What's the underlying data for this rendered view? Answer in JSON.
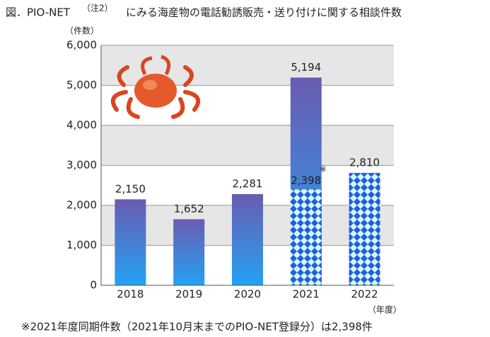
{
  "chart_data": {
    "type": "bar",
    "title": "図．PIO-NET",
    "title_note": "（注2）",
    "title_rest": "にみる海産物の電話勧誘販売・送り付けに関する相談件数",
    "y_label": "（件数）",
    "x_label": "（年度）",
    "categories": [
      "2018",
      "2019",
      "2020",
      "2021",
      "2022"
    ],
    "values": [
      2150,
      1652,
      2281,
      5194,
      2810
    ],
    "value_labels": [
      "2,150",
      "1,652",
      "2,281",
      "5,194",
      "2,810"
    ],
    "partial_values": [
      null,
      null,
      null,
      2398,
      null
    ],
    "partial_value_labels": [
      null,
      null,
      null,
      "2,398",
      null
    ],
    "partial_mark": "※",
    "pattern": [
      false,
      false,
      false,
      false,
      true
    ],
    "ylim": [
      0,
      6000
    ],
    "yticks": [
      0,
      {
        "value": 1000,
        "label": "1,000"
      },
      {
        "value": 2000,
        "label": "2,000"
      },
      {
        "value": 3000,
        "label": "3,000"
      },
      {
        "value": 4000,
        "label": "4,000"
      },
      {
        "value": 5000,
        "label": "5,000"
      },
      {
        "value": 6000,
        "label": "6,000"
      }
    ],
    "grid": true,
    "footnote": "※2021年度同期件数（2021年10月末までのPIO-NET登録分）は2,398件"
  }
}
